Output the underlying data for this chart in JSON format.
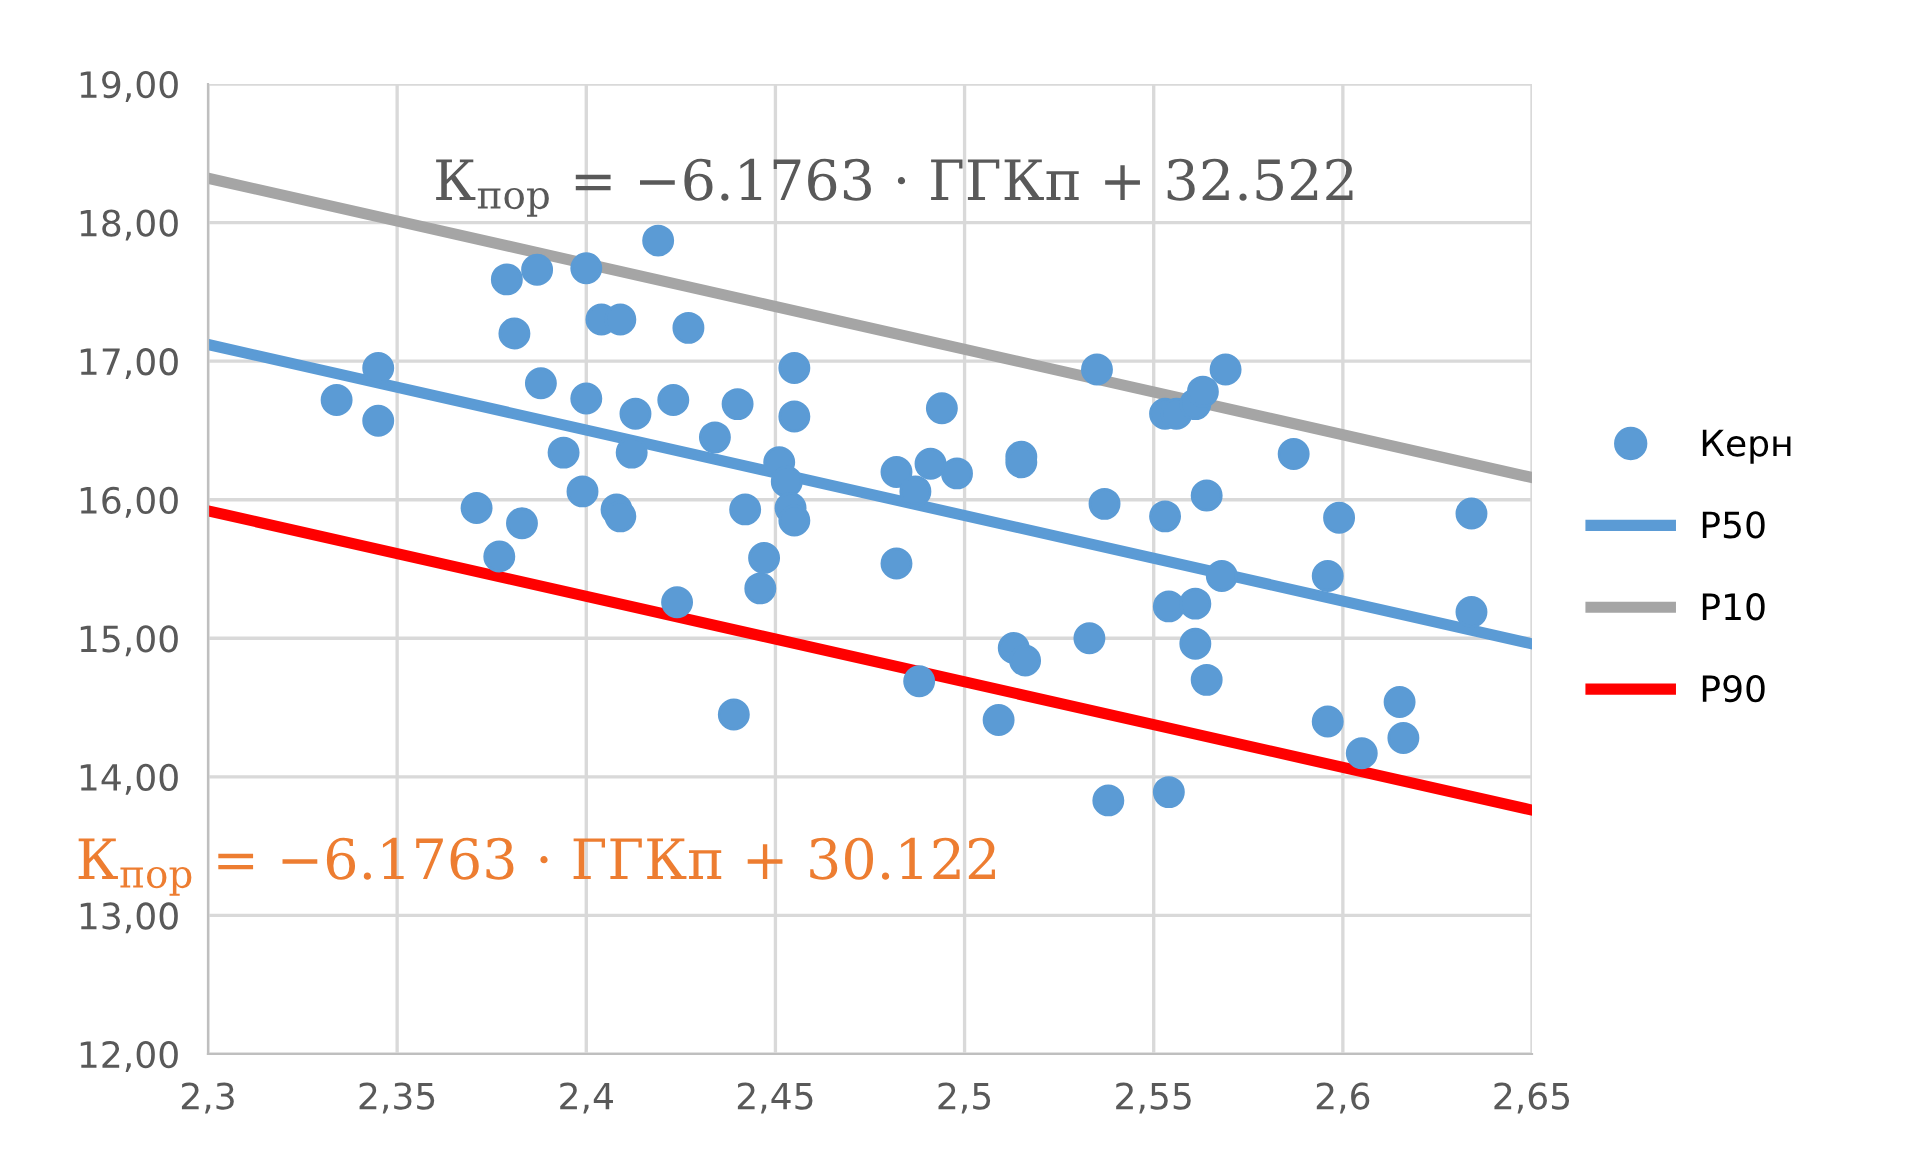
{
  "chart_data": {
    "type": "scatter",
    "xlim": [
      2.3,
      2.65
    ],
    "ylim": [
      12,
      19
    ],
    "xticks": [
      {
        "value": 2.3,
        "label": "2,3"
      },
      {
        "value": 2.35,
        "label": "2,35"
      },
      {
        "value": 2.4,
        "label": "2,4"
      },
      {
        "value": 2.45,
        "label": "2,45"
      },
      {
        "value": 2.5,
        "label": "2,5"
      },
      {
        "value": 2.55,
        "label": "2,55"
      },
      {
        "value": 2.6,
        "label": "2,6"
      },
      {
        "value": 2.65,
        "label": "2,65"
      }
    ],
    "yticks": [
      {
        "value": 12,
        "label": "12,00"
      },
      {
        "value": 13,
        "label": "13,00"
      },
      {
        "value": 14,
        "label": "14,00"
      },
      {
        "value": 15,
        "label": "15,00"
      },
      {
        "value": 16,
        "label": "16,00"
      },
      {
        "value": 17,
        "label": "17,00"
      },
      {
        "value": 18,
        "label": "18,00"
      },
      {
        "value": 19,
        "label": "19,00"
      }
    ],
    "grid": true,
    "legend": "right",
    "series": [
      {
        "name": "Керн",
        "marker": "circle",
        "color": "#5b9bd5",
        "x": [
          2.334,
          2.345,
          2.345,
          2.371,
          2.377,
          2.379,
          2.381,
          2.383,
          2.387,
          2.388,
          2.394,
          2.399,
          2.4,
          2.4,
          2.404,
          2.409,
          2.408,
          2.409,
          2.412,
          2.413,
          2.419,
          2.423,
          2.424,
          2.427,
          2.434,
          2.439,
          2.44,
          2.442,
          2.446,
          2.447,
          2.451,
          2.453,
          2.454,
          2.455,
          2.455,
          2.455,
          2.482,
          2.487,
          2.491,
          2.494,
          2.498,
          2.482,
          2.515,
          2.515,
          2.535,
          2.537,
          2.553,
          2.556,
          2.561,
          2.563,
          2.569,
          2.553,
          2.564,
          2.587,
          2.599,
          2.634,
          2.568,
          2.596,
          2.634,
          2.554,
          2.561,
          2.533,
          2.513,
          2.516,
          2.561,
          2.564,
          2.488,
          2.509,
          2.596,
          2.615,
          2.616,
          2.605,
          2.538,
          2.554
        ],
        "values": [
          16.72,
          16.95,
          16.57,
          15.94,
          15.59,
          17.59,
          17.2,
          15.83,
          17.66,
          16.84,
          16.34,
          16.06,
          17.67,
          16.73,
          17.3,
          17.3,
          15.93,
          15.88,
          16.34,
          16.62,
          17.87,
          16.72,
          15.26,
          17.24,
          16.45,
          14.45,
          16.69,
          15.93,
          15.36,
          15.58,
          16.27,
          16.13,
          15.94,
          16.95,
          16.6,
          15.85,
          16.2,
          16.06,
          16.26,
          16.66,
          16.19,
          15.54,
          16.31,
          16.27,
          16.94,
          15.97,
          16.62,
          16.62,
          16.69,
          16.78,
          16.94,
          15.88,
          16.03,
          16.33,
          15.87,
          15.9,
          15.45,
          15.45,
          15.19,
          15.23,
          15.25,
          15.0,
          14.93,
          14.84,
          14.96,
          14.7,
          14.69,
          14.41,
          14.4,
          14.54,
          14.28,
          14.17,
          13.83,
          13.89
        ]
      },
      {
        "name": "P50",
        "type": "line",
        "color": "#5b9bd5",
        "x": [
          2.3,
          2.65
        ],
        "values": [
          17.12,
          14.96
        ]
      },
      {
        "name": "P10",
        "type": "line",
        "color": "#a5a5a5",
        "x": [
          2.3,
          2.65
        ],
        "values": [
          18.32,
          16.16
        ]
      },
      {
        "name": "P90",
        "type": "line",
        "color": "#ff0000",
        "x": [
          2.3,
          2.65
        ],
        "values": [
          15.92,
          13.76
        ]
      }
    ],
    "annotations": [
      "К$_{пор}$ = −6.1763 · ГГКп + 32.522",
      "К$_{пор}$ = −6.1763 · ГГКп + 30.122"
    ]
  }
}
